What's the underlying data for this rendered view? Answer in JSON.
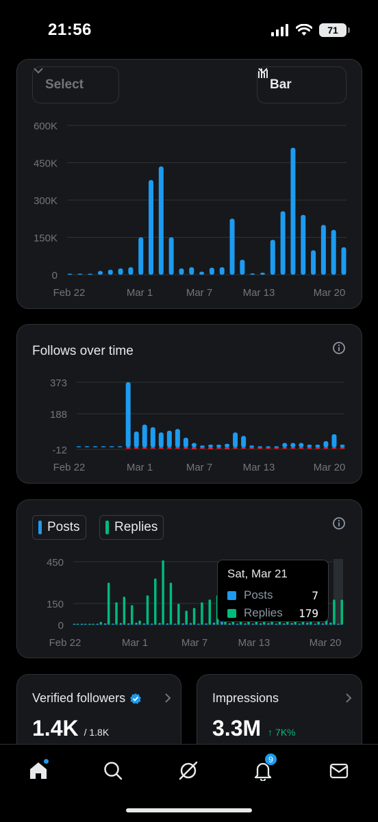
{
  "status_bar": {
    "time": "21:56",
    "battery": "71"
  },
  "controls": {
    "select_label": "Select",
    "chart_type_label": "Bar"
  },
  "colors": {
    "posts": "#1d9bf0",
    "replies": "#00ba7c",
    "negative": "#f4212e",
    "grid": "#2f3336",
    "axis_text": "#71767b"
  },
  "impressions_card": {
    "chart_data": {
      "type": "bar",
      "yticks": [
        "600K",
        "450K",
        "300K",
        "150K",
        "0"
      ],
      "ylim": [
        0,
        600000
      ],
      "xticks": [
        "Feb 22",
        "Mar 1",
        "Mar 7",
        "Mar 13",
        "Mar 20"
      ],
      "values": [
        2000,
        3000,
        4000,
        15000,
        20000,
        25000,
        30000,
        150000,
        380000,
        435000,
        150000,
        25000,
        30000,
        12000,
        28000,
        30000,
        225000,
        60000,
        5000,
        8000,
        140000,
        255000,
        510000,
        240000,
        98000,
        200000,
        180000,
        110000
      ]
    }
  },
  "follows_card": {
    "title": "Follows over time",
    "chart_data": {
      "type": "bar",
      "yticks": [
        "373",
        "188",
        "-12"
      ],
      "ylim": [
        -12,
        373
      ],
      "xticks": [
        "Feb 22",
        "Mar 1",
        "Mar 7",
        "Mar 13",
        "Mar 20"
      ],
      "values": [
        1,
        1,
        1,
        0,
        0,
        0,
        373,
        90,
        130,
        115,
        85,
        95,
        105,
        55,
        25,
        10,
        15,
        15,
        20,
        85,
        65,
        10,
        5,
        5,
        5,
        25,
        25,
        25,
        15,
        15,
        35,
        75,
        15
      ],
      "negatives": [
        0,
        0,
        0,
        0,
        0,
        0,
        -8,
        -6,
        -4,
        -6,
        -5,
        -8,
        -4,
        -6,
        -10,
        -8,
        -10,
        -6,
        -10,
        -8,
        -6,
        -4,
        -5,
        -6,
        -5,
        -6,
        -5,
        -5,
        -4,
        -4,
        -5,
        -6,
        -5
      ]
    }
  },
  "engagement_card": {
    "legend": [
      "Posts",
      "Replies"
    ],
    "tooltip": {
      "date": "Sat, Mar 21",
      "posts_label": "Posts",
      "posts_value": "7",
      "replies_label": "Replies",
      "replies_value": "179"
    },
    "chart_data": {
      "type": "bar",
      "yticks": [
        "450",
        "150",
        "0"
      ],
      "ylim": [
        0,
        450
      ],
      "xticks": [
        "Feb 22",
        "Mar 1",
        "Mar 7",
        "Mar 13",
        "Mar 20"
      ],
      "series": [
        {
          "name": "Posts",
          "values": [
            0,
            0,
            0,
            5,
            10,
            8,
            12,
            10,
            15,
            10,
            8,
            12,
            10,
            8,
            10,
            12,
            8,
            10,
            15,
            50,
            10,
            8,
            10,
            8,
            10,
            12,
            8,
            10,
            12,
            8,
            15,
            8,
            10,
            15,
            7
          ]
        },
        {
          "name": "Replies",
          "values": [
            0,
            0,
            0,
            20,
            300,
            160,
            200,
            140,
            30,
            210,
            330,
            460,
            300,
            150,
            100,
            120,
            160,
            180,
            210,
            100,
            150,
            80,
            100,
            120,
            140,
            160,
            100,
            150,
            160,
            120,
            100,
            200,
            130,
            180,
            179
          ]
        }
      ]
    }
  },
  "verified_followers": {
    "title": "Verified followers",
    "value": "1.4K",
    "total": "/ 1.8K"
  },
  "impressions": {
    "title": "Impressions",
    "value": "3.3M",
    "change": "↑ 7K%"
  },
  "nav": {
    "notification_count": "9"
  }
}
